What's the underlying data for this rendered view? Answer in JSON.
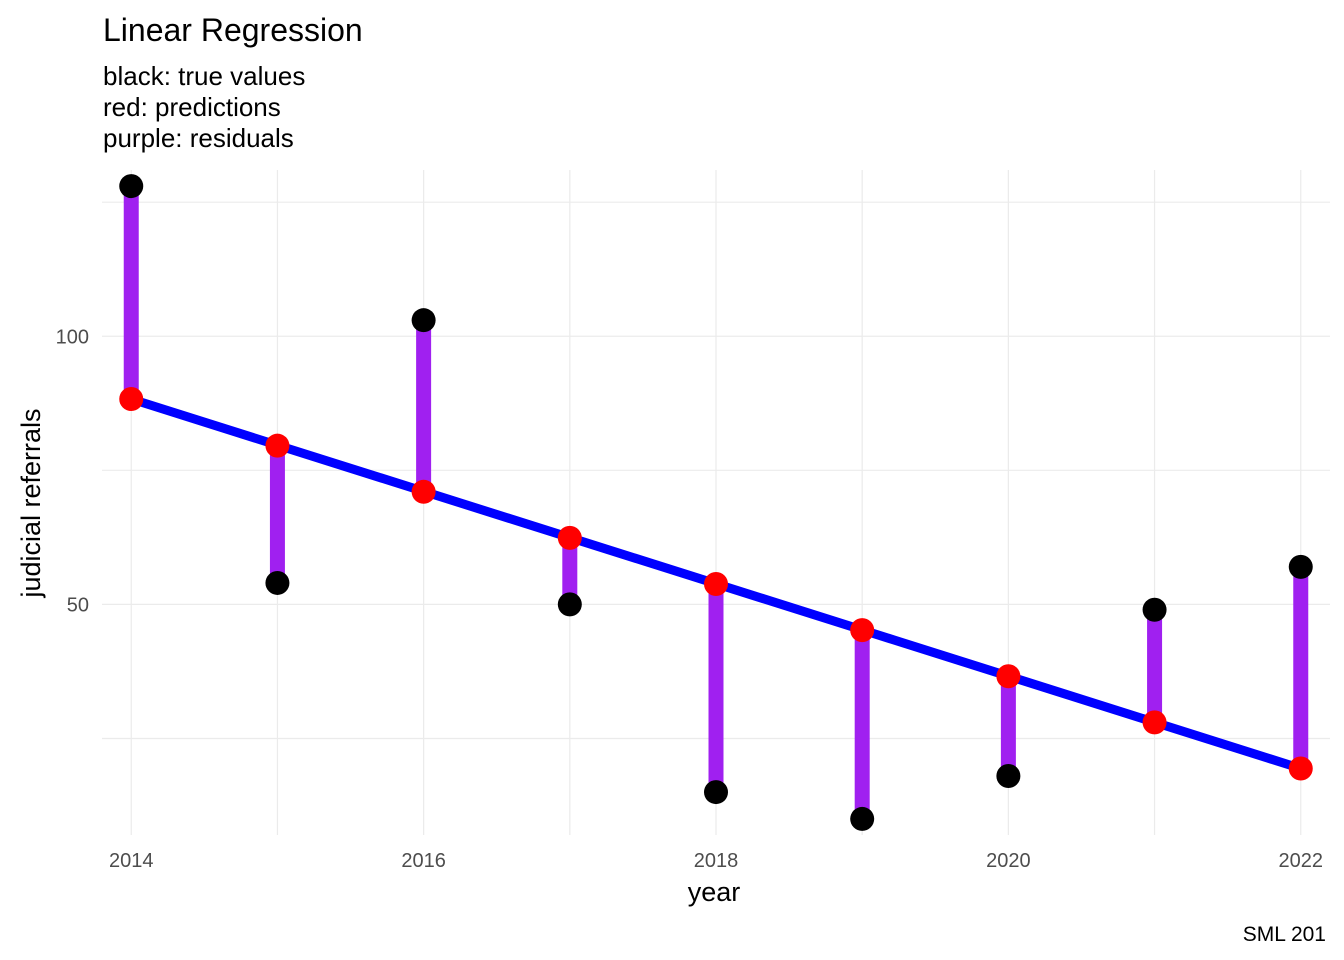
{
  "chart_data": {
    "type": "scatter",
    "title": "Linear Regression",
    "subtitle_lines": [
      "black: true values",
      "red: predictions",
      "purple: residuals"
    ],
    "xlabel": "year",
    "ylabel": "judicial referrals",
    "caption": "SML 201",
    "x": [
      2014,
      2015,
      2016,
      2017,
      2018,
      2019,
      2020,
      2021,
      2022
    ],
    "series": [
      {
        "role": "true values",
        "values": [
          128,
          54,
          103,
          50,
          15,
          10,
          18,
          49,
          57
        ]
      },
      {
        "role": "predictions",
        "values": [
          88.3,
          79.6,
          71.0,
          62.4,
          53.8,
          45.2,
          36.6,
          28.0,
          19.4
        ]
      }
    ],
    "regression_line": {
      "x": [
        2014,
        2022
      ],
      "y": [
        88.3,
        19.4
      ]
    },
    "xlim": [
      2013.8,
      2022.2
    ],
    "ylim": [
      7,
      131
    ],
    "x_ticks": [
      2014,
      2016,
      2018,
      2020,
      2022
    ],
    "y_ticks": [
      50,
      100
    ],
    "grid": true,
    "colors": {
      "true": "#000000",
      "prediction": "#ff0000",
      "residual": "#a020f0",
      "regression": "#0000ff",
      "grid": "#ebebeb",
      "tick_text": "#4d4d4d"
    }
  }
}
